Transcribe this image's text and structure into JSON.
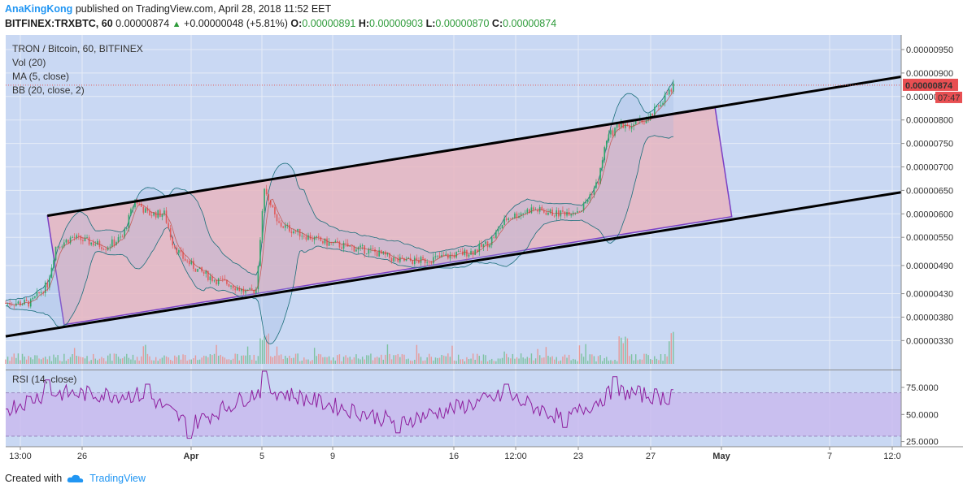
{
  "header": {
    "author": "AnaKingKong",
    "published": "published on TradingView.com, April 28, 2018 11:52 EET",
    "symbol": "BITFINEX:TRXBTC, 60",
    "last": "0.00000874",
    "change": "+0.00000048 (+5.81%)",
    "o_label": "O:",
    "o": "0.00000891",
    "h_label": "H:",
    "h": "0.00000903",
    "l_label": "L:",
    "l": "0.00000870",
    "c_label": "C:",
    "c": "0.00000874"
  },
  "legend": {
    "title": "TRON / Bitcoin, 60, BITFINEX",
    "vol": "Vol (20)",
    "ma": "MA (5, close)",
    "bb": "BB (20, close, 2)",
    "rsi": "RSI (14, close)"
  },
  "price_badge": {
    "value": "0.00000874",
    "countdown": "07:47",
    "color": "#e84f52"
  },
  "footer": {
    "created_with": "Created with",
    "brand": "TradingView"
  },
  "colors": {
    "background": "#c9d8f3",
    "channel_fill": "#e8b6c0",
    "channel_border": "#7b3fc4",
    "trendline": "#000000",
    "up": "#2ea86a",
    "down": "#e25a5a",
    "rsi_line": "#8e1f9e",
    "rsi_band": "#c9b9ee",
    "accent": "#2196f3"
  },
  "chart_data": [
    {
      "type": "candlestick",
      "title": "TRON / Bitcoin, 60, BITFINEX",
      "y_ticks": [
        "0.00000950",
        "0.00000900",
        "0.00000850",
        "0.00000800",
        "0.00000750",
        "0.00000700",
        "0.00000650",
        "0.00000600",
        "0.00000550",
        "0.00000490",
        "0.00000430",
        "0.00000380",
        "0.00000330"
      ],
      "x_ticks": [
        "13:00",
        "26",
        "Apr",
        "5",
        "9",
        "16",
        "12:00",
        "23",
        "27",
        "May",
        "7",
        "12:0"
      ],
      "x_ticks_bold": [
        "Apr",
        "May"
      ],
      "ylim": [
        2.9e-06,
        9.6e-06
      ],
      "close_path": [
        [
          0,
          4.1e-06
        ],
        [
          3,
          4.1e-06
        ],
        [
          5,
          4.5e-06
        ],
        [
          6,
          5.3e-06
        ],
        [
          8,
          5.5e-06
        ],
        [
          10,
          5.4e-06
        ],
        [
          12,
          5.3e-06
        ],
        [
          14,
          5.5e-06
        ],
        [
          15.5,
          6.3e-06
        ],
        [
          17,
          6e-06
        ],
        [
          19,
          6e-06
        ],
        [
          20,
          5.4e-06
        ],
        [
          21,
          5.1e-06
        ],
        [
          23,
          4.8e-06
        ],
        [
          25,
          4.6e-06
        ],
        [
          27,
          4.5e-06
        ],
        [
          29,
          4.3e-06
        ],
        [
          30,
          4.4e-06
        ],
        [
          31,
          6.6e-06
        ],
        [
          32.5,
          5.8e-06
        ],
        [
          35,
          5.6e-06
        ],
        [
          38,
          5.4e-06
        ],
        [
          41,
          5.3e-06
        ],
        [
          44,
          5.2e-06
        ],
        [
          47,
          5e-06
        ],
        [
          50,
          5e-06
        ],
        [
          53,
          5.1e-06
        ],
        [
          56,
          5.2e-06
        ],
        [
          58,
          5.4e-06
        ],
        [
          60,
          5.9e-06
        ],
        [
          63,
          6.1e-06
        ],
        [
          66,
          6e-06
        ],
        [
          69,
          6.1e-06
        ],
        [
          71,
          6.7e-06
        ],
        [
          72,
          7.6e-06
        ],
        [
          73.5,
          7.9e-06
        ],
        [
          75,
          7.9e-06
        ],
        [
          77,
          8e-06
        ],
        [
          79,
          8.5e-06
        ],
        [
          80,
          8.7e-06
        ]
      ],
      "channel_top": {
        "start": [
          5,
          5.96e-06
        ],
        "end": [
          85,
          8.26e-06
        ]
      },
      "channel_bottom": {
        "start": [
          7,
          3.64e-06
        ],
        "end": [
          87,
          5.94e-06
        ]
      },
      "trendline_upper": {
        "start": [
          5,
          5.96e-06
        ],
        "end": [
          107.3,
          8.92e-06
        ]
      },
      "trendline_lower": {
        "start": [
          0,
          3.39e-06
        ],
        "end": [
          107.3,
          6.46e-06
        ]
      },
      "last_price": 8.74e-06,
      "volume_spikes": [
        31,
        74,
        80
      ]
    },
    {
      "type": "line",
      "title": "RSI (14, close)",
      "y_ticks": [
        "75.0000",
        "50.0000",
        "25.0000"
      ],
      "ylim": [
        20,
        95
      ],
      "band": [
        30,
        70
      ],
      "peaks": [
        [
          5,
          82
        ],
        [
          17,
          78
        ],
        [
          31,
          90
        ],
        [
          60,
          78
        ],
        [
          73,
          85
        ],
        [
          80,
          73
        ]
      ],
      "troughs": [
        [
          22,
          28
        ],
        [
          47,
          33
        ],
        [
          67,
          38
        ]
      ]
    }
  ]
}
